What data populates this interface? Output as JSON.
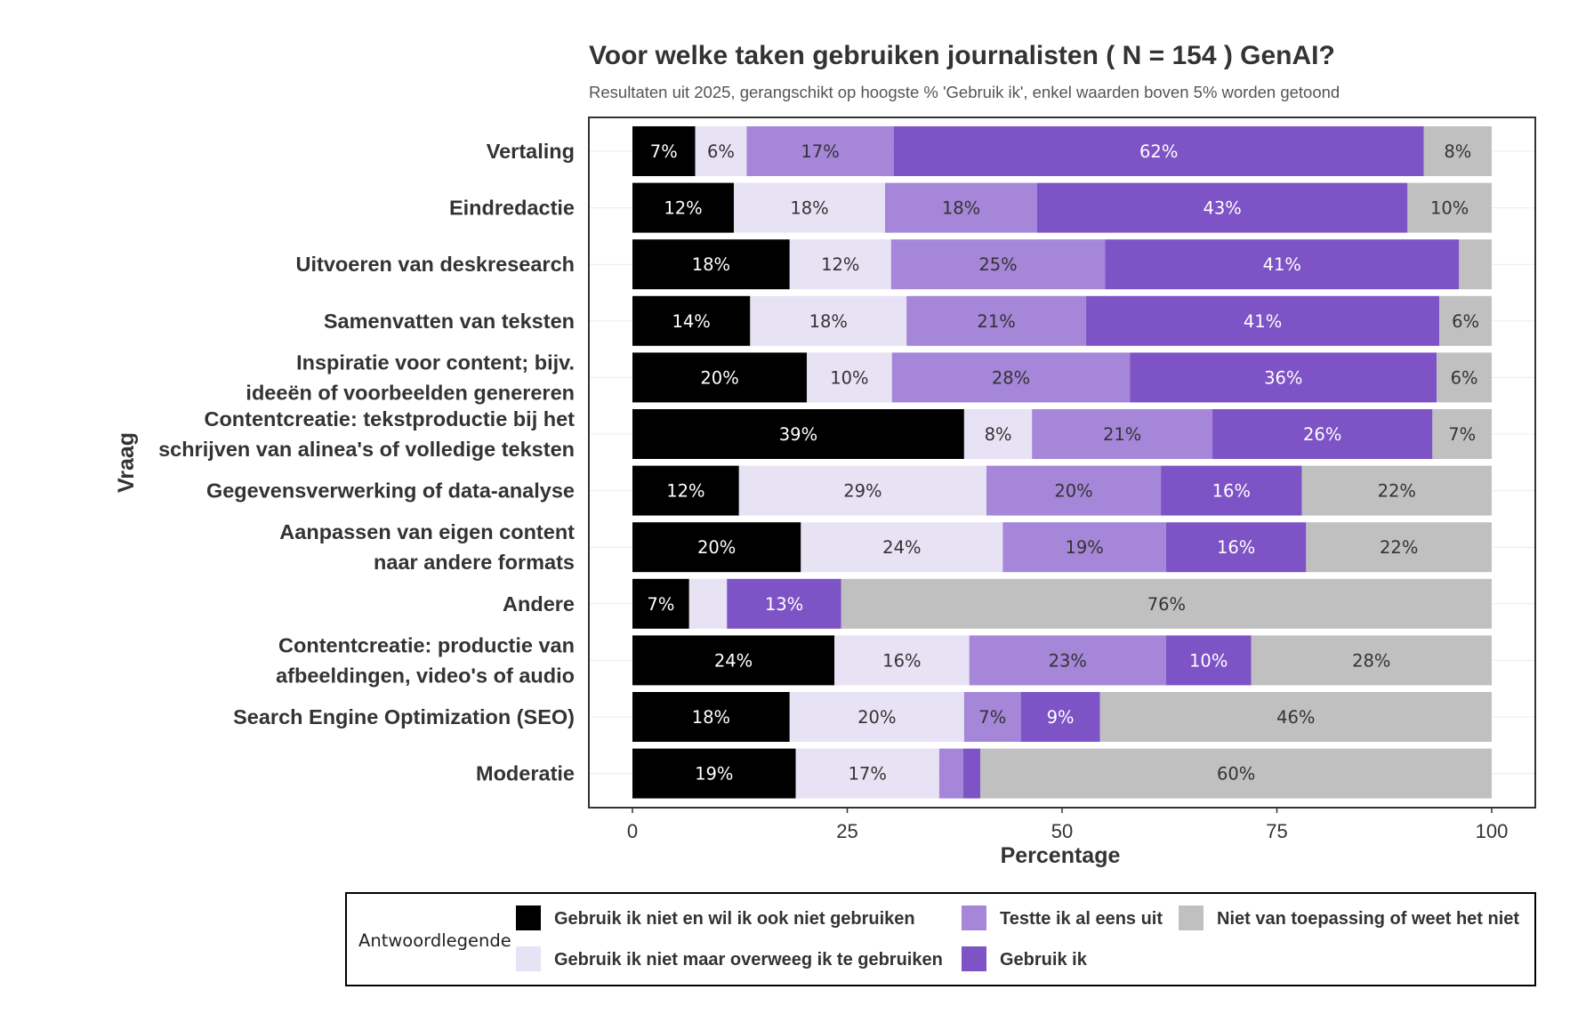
{
  "chart_data": {
    "type": "bar",
    "orientation": "horizontal",
    "stacked": true,
    "title": "Voor welke taken gebruiken journalisten ( N = 154 ) GenAI?",
    "subtitle": "Resultaten uit 2025, gerangschikt op hoogste % 'Gebruik ik', enkel waarden boven 5% worden getoond",
    "xlabel": "Percentage",
    "ylabel": "Vraag",
    "xlim": [
      0,
      100
    ],
    "xticks": [
      "0",
      "25",
      "50",
      "75",
      "100"
    ],
    "label_threshold": 5,
    "categories": [
      [
        "Vertaling"
      ],
      [
        "Eindredactie"
      ],
      [
        "Uitvoeren van deskresearch"
      ],
      [
        "Samenvatten van teksten"
      ],
      [
        "Inspiratie voor content; bijv.",
        "ideeën of voorbeelden genereren"
      ],
      [
        "Contentcreatie: tekstproductie bij het",
        "schrijven van alinea's of volledige teksten"
      ],
      [
        "Gegevensverwerking of data-analyse"
      ],
      [
        "Aanpassen van eigen content",
        "naar andere formats"
      ],
      [
        "Andere"
      ],
      [
        "Contentcreatie: productie van",
        "afbeeldingen, video's of audio"
      ],
      [
        "Search Engine Optimization (SEO)"
      ],
      [
        "Moderatie"
      ]
    ],
    "series": [
      {
        "name": "Gebruik ik niet en wil ik ook niet gebruiken",
        "color": "#000000",
        "text_color": "#ffffff",
        "values": [
          7.3,
          11.8,
          18.3,
          13.7,
          20.3,
          38.6,
          12.4,
          19.6,
          6.6,
          23.5,
          18.3,
          19.0
        ]
      },
      {
        "name": "Gebruik ik niet maar overweeg ik te gebruiken",
        "color": "#e8e2f5",
        "text_color": "#333333",
        "values": [
          6.0,
          17.6,
          11.8,
          18.2,
          9.9,
          7.9,
          28.8,
          23.5,
          4.4,
          15.7,
          20.3,
          16.7
        ]
      },
      {
        "name": "Testte ik al eens uit",
        "color": "#a586d8",
        "text_color": "#333333",
        "values": [
          17.1,
          17.7,
          24.9,
          20.9,
          27.7,
          21.0,
          20.3,
          19.0,
          0.0,
          22.9,
          6.6,
          2.8
        ]
      },
      {
        "name": "Gebruik ik",
        "color": "#7e53c6",
        "text_color": "#ffffff",
        "values": [
          61.7,
          43.1,
          41.2,
          41.1,
          35.7,
          25.6,
          16.4,
          16.3,
          13.3,
          9.9,
          9.2,
          2.0
        ]
      },
      {
        "name": "Niet van toepassing of weet het niet",
        "color": "#c0c0c0",
        "text_color": "#333333",
        "values": [
          7.9,
          9.8,
          3.8,
          6.1,
          6.4,
          6.9,
          22.1,
          21.6,
          75.7,
          28.0,
          45.6,
          59.5
        ]
      }
    ],
    "legend": {
      "title": "Antwoordlegende",
      "position": "bottom",
      "order": [
        0,
        1,
        2,
        3,
        4
      ]
    },
    "grid": true
  }
}
